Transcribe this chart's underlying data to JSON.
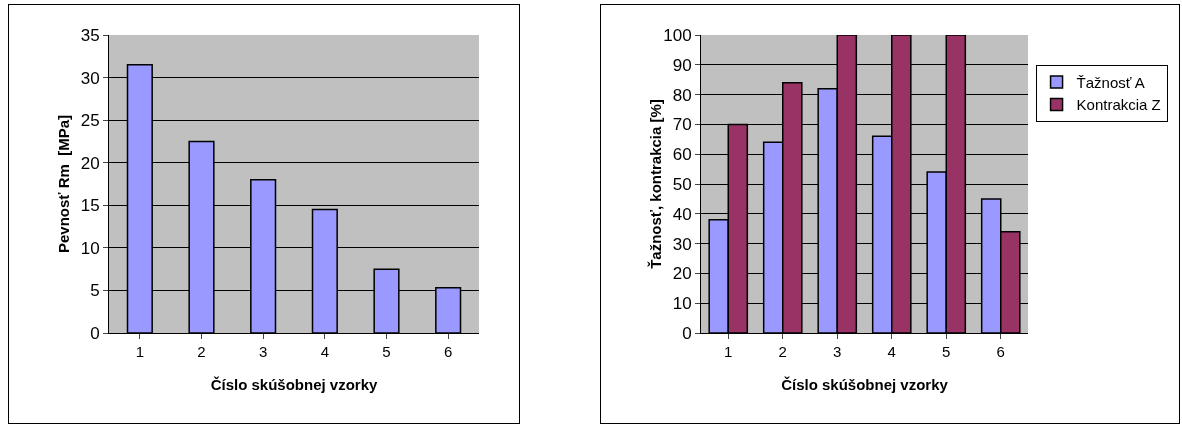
{
  "chart_data": [
    {
      "type": "bar",
      "xlabel": "Číslo skúšobnej vzorky",
      "ylabel": "Pevnosť Rm  [MPa]",
      "categories": [
        "1",
        "2",
        "3",
        "4",
        "5",
        "6"
      ],
      "series": [
        {
          "color": "#9999ff",
          "values": [
            31.5,
            22.5,
            18,
            14.5,
            7.5,
            5.3
          ]
        }
      ],
      "ylim": [
        0,
        35
      ],
      "yticks": [
        0,
        5,
        10,
        15,
        20,
        25,
        30,
        35
      ],
      "grid": "y",
      "legend": false
    },
    {
      "type": "bar",
      "xlabel": "Číslo skúšobnej vzorky",
      "ylabel": "Ťažnosť, kontrakcia [%]",
      "categories": [
        "1",
        "2",
        "3",
        "4",
        "5",
        "6"
      ],
      "series": [
        {
          "name": "Ťažnosť A",
          "color": "#9999ff",
          "values": [
            38,
            64,
            82,
            66,
            54,
            45
          ]
        },
        {
          "name": "Kontrakcia Z",
          "color": "#993366",
          "values": [
            70,
            84,
            100,
            100,
            100,
            34
          ]
        }
      ],
      "ylim": [
        0,
        100
      ],
      "yticks": [
        0,
        10,
        20,
        30,
        40,
        50,
        60,
        70,
        80,
        90,
        100
      ],
      "grid": "y",
      "legend": "right"
    }
  ]
}
